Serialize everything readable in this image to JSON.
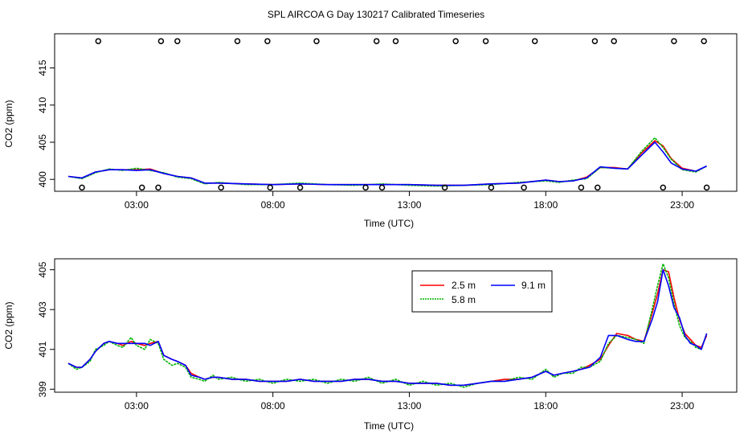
{
  "title": "SPL AIRCOA G  Day 130217  Calibrated Timeseries",
  "colors": {
    "red": "#ff0000",
    "green": "#00b400",
    "blue": "#0000ff",
    "black": "#000000"
  },
  "chart_data": [
    {
      "type": "line",
      "panel": "top",
      "title": "SPL AIRCOA G  Day 130217  Calibrated Timeseries",
      "xlabel": "Time (UTC)",
      "ylabel": "CO2 (ppm)",
      "xlim": [
        0.0,
        25.0
      ],
      "ylim": [
        398.4,
        419.6
      ],
      "x_ticks": [
        3,
        8,
        13,
        18,
        23
      ],
      "x_tick_labels": [
        "03:00",
        "08:00",
        "13:00",
        "18:00",
        "23:00"
      ],
      "y_ticks": [
        400,
        405,
        410,
        415
      ],
      "y_tick_labels": [
        "400",
        "405",
        "410",
        "415"
      ],
      "series": [
        {
          "name": "2.5 m",
          "color": "#ff0000",
          "x": [
            0.5,
            1.0,
            1.5,
            2.0,
            2.5,
            3.0,
            3.5,
            4.0,
            4.5,
            5.0,
            5.5,
            6.0,
            7.0,
            8.0,
            9.0,
            10.0,
            11.0,
            12.0,
            13.0,
            14.0,
            15.0,
            16.0,
            17.0,
            18.0,
            18.5,
            19.0,
            19.5,
            20.0,
            20.5,
            21.0,
            21.5,
            22.0,
            22.3,
            22.6,
            23.0,
            23.5,
            23.9
          ],
          "y": [
            400.4,
            400.2,
            401.0,
            401.3,
            401.3,
            401.3,
            401.4,
            400.8,
            400.4,
            400.2,
            399.5,
            399.5,
            399.4,
            399.3,
            399.4,
            399.3,
            399.3,
            399.3,
            399.3,
            399.2,
            399.2,
            399.4,
            399.5,
            399.9,
            399.7,
            399.8,
            400.3,
            401.6,
            401.6,
            401.4,
            403.5,
            405.2,
            404.5,
            402.8,
            401.5,
            401.1,
            401.8
          ]
        },
        {
          "name": "5.8 m",
          "color": "#00b400",
          "x": [
            0.5,
            1.0,
            1.5,
            2.0,
            2.5,
            3.0,
            3.5,
            4.0,
            4.5,
            5.0,
            5.5,
            6.0,
            7.0,
            8.0,
            9.0,
            10.0,
            11.0,
            12.0,
            13.0,
            14.0,
            15.0,
            16.0,
            17.0,
            18.0,
            18.5,
            19.0,
            19.5,
            20.0,
            20.5,
            21.0,
            21.5,
            22.0,
            22.3,
            22.6,
            23.0,
            23.5,
            23.9
          ],
          "y": [
            400.4,
            400.1,
            400.9,
            401.4,
            401.2,
            401.5,
            401.2,
            400.9,
            400.3,
            400.1,
            399.4,
            399.6,
            399.3,
            399.3,
            399.5,
            399.3,
            399.2,
            399.4,
            399.2,
            399.1,
            399.2,
            399.3,
            399.6,
            399.8,
            399.6,
            399.9,
            400.1,
            401.6,
            401.5,
            401.4,
            403.7,
            405.6,
            404.3,
            402.7,
            401.3,
            401.0,
            401.8
          ]
        },
        {
          "name": "9.1 m",
          "color": "#0000ff",
          "x": [
            0.5,
            1.0,
            1.5,
            2.0,
            2.5,
            3.0,
            3.5,
            4.0,
            4.5,
            5.0,
            5.5,
            6.0,
            7.0,
            8.0,
            9.0,
            10.0,
            11.0,
            12.0,
            13.0,
            14.0,
            15.0,
            16.0,
            17.0,
            18.0,
            18.5,
            19.0,
            19.5,
            20.0,
            20.5,
            21.0,
            21.5,
            22.0,
            22.3,
            22.6,
            23.0,
            23.5,
            23.9
          ],
          "y": [
            400.4,
            400.2,
            401.0,
            401.3,
            401.3,
            401.2,
            401.3,
            400.8,
            400.4,
            400.2,
            399.5,
            399.5,
            399.4,
            399.3,
            399.4,
            399.3,
            399.3,
            399.3,
            399.3,
            399.2,
            399.2,
            399.4,
            399.5,
            399.9,
            399.7,
            399.8,
            400.2,
            401.7,
            401.5,
            401.4,
            403.2,
            405.0,
            403.7,
            402.2,
            401.4,
            401.1,
            401.8
          ]
        }
      ],
      "markers": {
        "style": "open-circle",
        "upper": {
          "y": 418.6,
          "x": [
            1.6,
            3.9,
            4.5,
            6.7,
            7.8,
            9.6,
            11.8,
            12.5,
            14.7,
            15.8,
            17.6,
            19.8,
            20.5,
            22.7,
            23.8
          ]
        },
        "lower": {
          "y": 398.9,
          "x": [
            1.0,
            3.2,
            3.8,
            6.1,
            7.9,
            9.0,
            11.4,
            12.0,
            14.3,
            16.0,
            17.2,
            19.3,
            19.9,
            22.3,
            23.9
          ]
        }
      }
    },
    {
      "type": "line",
      "panel": "bottom",
      "xlabel": "Time (UTC)",
      "ylabel": "CO2 (ppm)",
      "xlim": [
        0.0,
        25.0
      ],
      "ylim": [
        398.85,
        405.55
      ],
      "x_ticks": [
        3,
        8,
        13,
        18,
        23
      ],
      "x_tick_labels": [
        "03:00",
        "08:00",
        "13:00",
        "18:00",
        "23:00"
      ],
      "y_ticks": [
        399,
        401,
        403,
        405
      ],
      "y_tick_labels": [
        "399",
        "401",
        "403",
        "405"
      ],
      "legend": {
        "position": "top-right",
        "entries": [
          "2.5 m",
          "9.1 m",
          "5.8 m"
        ]
      },
      "series": [
        {
          "name": "2.5 m",
          "color": "#ff0000",
          "x": [
            0.5,
            0.8,
            1.0,
            1.3,
            1.5,
            1.8,
            2.0,
            2.3,
            2.5,
            2.8,
            3.0,
            3.3,
            3.5,
            3.8,
            4.0,
            4.3,
            4.5,
            4.8,
            5.0,
            5.3,
            5.5,
            5.8,
            6.0,
            6.5,
            7.0,
            7.5,
            8.0,
            8.5,
            9.0,
            9.5,
            10.0,
            10.5,
            11.0,
            11.5,
            12.0,
            12.5,
            13.0,
            13.5,
            14.0,
            14.5,
            15.0,
            15.5,
            16.0,
            16.5,
            17.0,
            17.5,
            18.0,
            18.3,
            18.6,
            19.0,
            19.3,
            19.6,
            20.0,
            20.3,
            20.6,
            21.0,
            21.3,
            21.6,
            21.9,
            22.1,
            22.3,
            22.5,
            22.7,
            22.9,
            23.1,
            23.3,
            23.5,
            23.7,
            23.9
          ],
          "y": [
            400.3,
            400.1,
            400.1,
            400.5,
            400.9,
            401.3,
            401.4,
            401.3,
            401.2,
            401.4,
            401.3,
            401.2,
            401.3,
            401.4,
            400.7,
            400.5,
            400.4,
            400.2,
            399.8,
            399.6,
            399.5,
            399.6,
            399.6,
            399.5,
            399.5,
            399.4,
            399.4,
            399.4,
            399.5,
            399.4,
            399.4,
            399.4,
            399.5,
            399.5,
            399.4,
            399.4,
            399.3,
            399.3,
            399.3,
            399.2,
            399.2,
            399.3,
            399.4,
            399.5,
            399.5,
            399.6,
            399.9,
            399.7,
            399.8,
            399.9,
            400.0,
            400.2,
            400.5,
            401.2,
            401.8,
            401.7,
            401.5,
            401.4,
            402.8,
            403.8,
            405.0,
            404.9,
            403.6,
            402.5,
            401.8,
            401.5,
            401.2,
            401.1,
            401.7
          ]
        },
        {
          "name": "5.8 m",
          "color": "#00b400",
          "x": [
            0.5,
            0.8,
            1.0,
            1.3,
            1.5,
            1.8,
            2.0,
            2.3,
            2.5,
            2.8,
            3.0,
            3.3,
            3.5,
            3.8,
            4.0,
            4.3,
            4.5,
            4.8,
            5.0,
            5.3,
            5.5,
            5.8,
            6.0,
            6.5,
            7.0,
            7.5,
            8.0,
            8.5,
            9.0,
            9.5,
            10.0,
            10.5,
            11.0,
            11.5,
            12.0,
            12.5,
            13.0,
            13.5,
            14.0,
            14.5,
            15.0,
            15.5,
            16.0,
            16.5,
            17.0,
            17.5,
            18.0,
            18.3,
            18.6,
            19.0,
            19.3,
            19.6,
            20.0,
            20.3,
            20.6,
            21.0,
            21.3,
            21.6,
            21.9,
            22.1,
            22.3,
            22.5,
            22.7,
            22.9,
            23.1,
            23.3,
            23.5,
            23.7,
            23.9
          ],
          "y": [
            400.3,
            400.0,
            400.1,
            400.4,
            401.0,
            401.2,
            401.4,
            401.2,
            401.1,
            401.6,
            401.2,
            401.0,
            401.5,
            401.3,
            400.5,
            400.2,
            400.3,
            400.1,
            399.6,
            399.5,
            399.4,
            399.7,
            399.5,
            399.6,
            399.4,
            399.5,
            399.3,
            399.5,
            399.4,
            399.5,
            399.3,
            399.5,
            399.4,
            399.6,
            399.3,
            399.5,
            399.2,
            399.4,
            399.2,
            399.3,
            399.1,
            399.3,
            399.4,
            399.4,
            399.6,
            399.5,
            400.0,
            399.6,
            399.8,
            399.8,
            400.1,
            400.1,
            400.4,
            401.3,
            401.7,
            401.6,
            401.5,
            401.3,
            403.0,
            404.2,
            405.3,
            404.6,
            403.3,
            402.2,
            401.6,
            401.4,
            401.1,
            401.0,
            401.8
          ]
        },
        {
          "name": "9.1 m",
          "color": "#0000ff",
          "x": [
            0.5,
            0.8,
            1.0,
            1.3,
            1.5,
            1.8,
            2.0,
            2.3,
            2.5,
            2.8,
            3.0,
            3.3,
            3.5,
            3.8,
            4.0,
            4.3,
            4.5,
            4.8,
            5.0,
            5.3,
            5.5,
            5.8,
            6.0,
            6.5,
            7.0,
            7.5,
            8.0,
            8.5,
            9.0,
            9.5,
            10.0,
            10.5,
            11.0,
            11.5,
            12.0,
            12.5,
            13.0,
            13.5,
            14.0,
            14.5,
            15.0,
            15.5,
            16.0,
            16.5,
            17.0,
            17.5,
            18.0,
            18.3,
            18.6,
            19.0,
            19.3,
            19.6,
            20.0,
            20.3,
            20.6,
            21.0,
            21.3,
            21.6,
            21.9,
            22.1,
            22.3,
            22.5,
            22.7,
            22.9,
            23.1,
            23.3,
            23.5,
            23.7,
            23.9
          ],
          "y": [
            400.3,
            400.1,
            400.1,
            400.5,
            400.9,
            401.3,
            401.4,
            401.3,
            401.3,
            401.3,
            401.3,
            401.3,
            401.2,
            401.4,
            400.7,
            400.5,
            400.4,
            400.2,
            399.7,
            399.6,
            399.5,
            399.6,
            399.6,
            399.5,
            399.5,
            399.4,
            399.4,
            399.4,
            399.5,
            399.4,
            399.4,
            399.4,
            399.5,
            399.5,
            399.4,
            399.4,
            399.3,
            399.3,
            399.3,
            399.2,
            399.2,
            399.3,
            399.4,
            399.4,
            399.5,
            399.6,
            399.9,
            399.7,
            399.8,
            399.9,
            400.0,
            400.1,
            400.6,
            401.7,
            401.7,
            401.5,
            401.4,
            401.4,
            402.5,
            403.4,
            405.0,
            404.2,
            403.1,
            402.6,
            401.7,
            401.3,
            401.2,
            401.0,
            401.8
          ]
        }
      ]
    }
  ]
}
